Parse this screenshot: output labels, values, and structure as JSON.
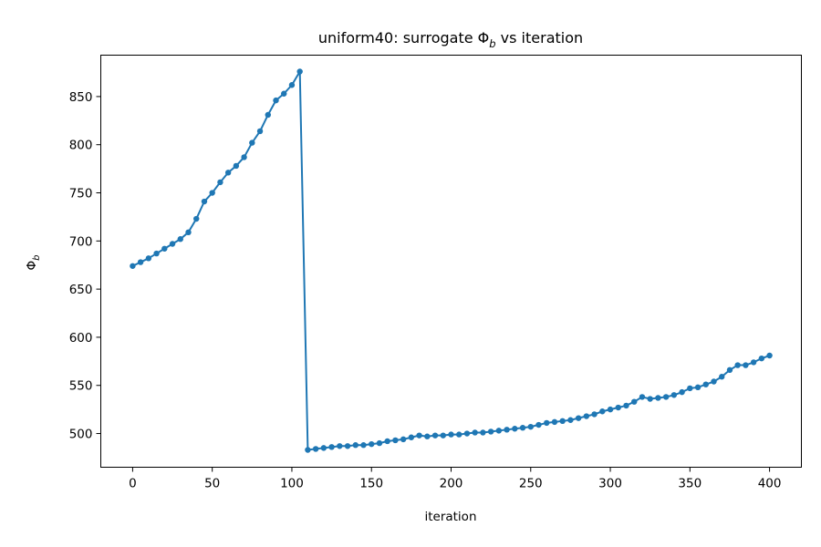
{
  "chart_data": {
    "type": "line",
    "title": "uniform40: surrogate Φ",
    "title_sub": "b",
    "title_rest": " vs iteration",
    "xlabel": "iteration",
    "ylabel": "Φ",
    "ylabel_sub": "b",
    "xlim": [
      -20,
      420
    ],
    "ylim": [
      465,
      893
    ],
    "x_ticks": [
      0,
      50,
      100,
      150,
      200,
      250,
      300,
      350,
      400
    ],
    "y_ticks": [
      500,
      550,
      600,
      650,
      700,
      750,
      800,
      850
    ],
    "grid": false,
    "colors": {
      "series": "#1f77b4"
    },
    "series": [
      {
        "x": [
          0,
          5,
          10,
          15,
          20,
          25,
          30,
          35,
          40,
          45,
          50,
          55,
          60,
          65,
          70,
          75,
          80,
          85,
          90,
          95,
          100,
          105,
          110,
          115,
          120,
          125,
          130,
          135,
          140,
          145,
          150,
          155,
          160,
          165,
          170,
          175,
          180,
          185,
          190,
          195,
          200,
          205,
          210,
          215,
          220,
          225,
          230,
          235,
          240,
          245,
          250,
          255,
          260,
          265,
          270,
          275,
          280,
          285,
          290,
          295,
          300,
          305,
          310,
          315,
          320,
          325,
          330,
          335,
          340,
          345,
          350,
          355,
          360,
          365,
          370,
          375,
          380,
          385,
          390,
          395,
          400
        ],
        "y": [
          674,
          678,
          682,
          687,
          692,
          697,
          702,
          709,
          723,
          741,
          750,
          761,
          771,
          778,
          787,
          802,
          814,
          831,
          846,
          853,
          862,
          876,
          483,
          484,
          485,
          486,
          487,
          487,
          488,
          488,
          489,
          490,
          492,
          493,
          494,
          496,
          498,
          497,
          498,
          498,
          499,
          499,
          500,
          501,
          501,
          502,
          503,
          504,
          505,
          506,
          507,
          509,
          511,
          512,
          513,
          514,
          516,
          518,
          520,
          523,
          525,
          527,
          529,
          533,
          538,
          536,
          537,
          538,
          540,
          543,
          547,
          548,
          551,
          554,
          559,
          566,
          571,
          571,
          574,
          578,
          581
        ]
      }
    ]
  }
}
